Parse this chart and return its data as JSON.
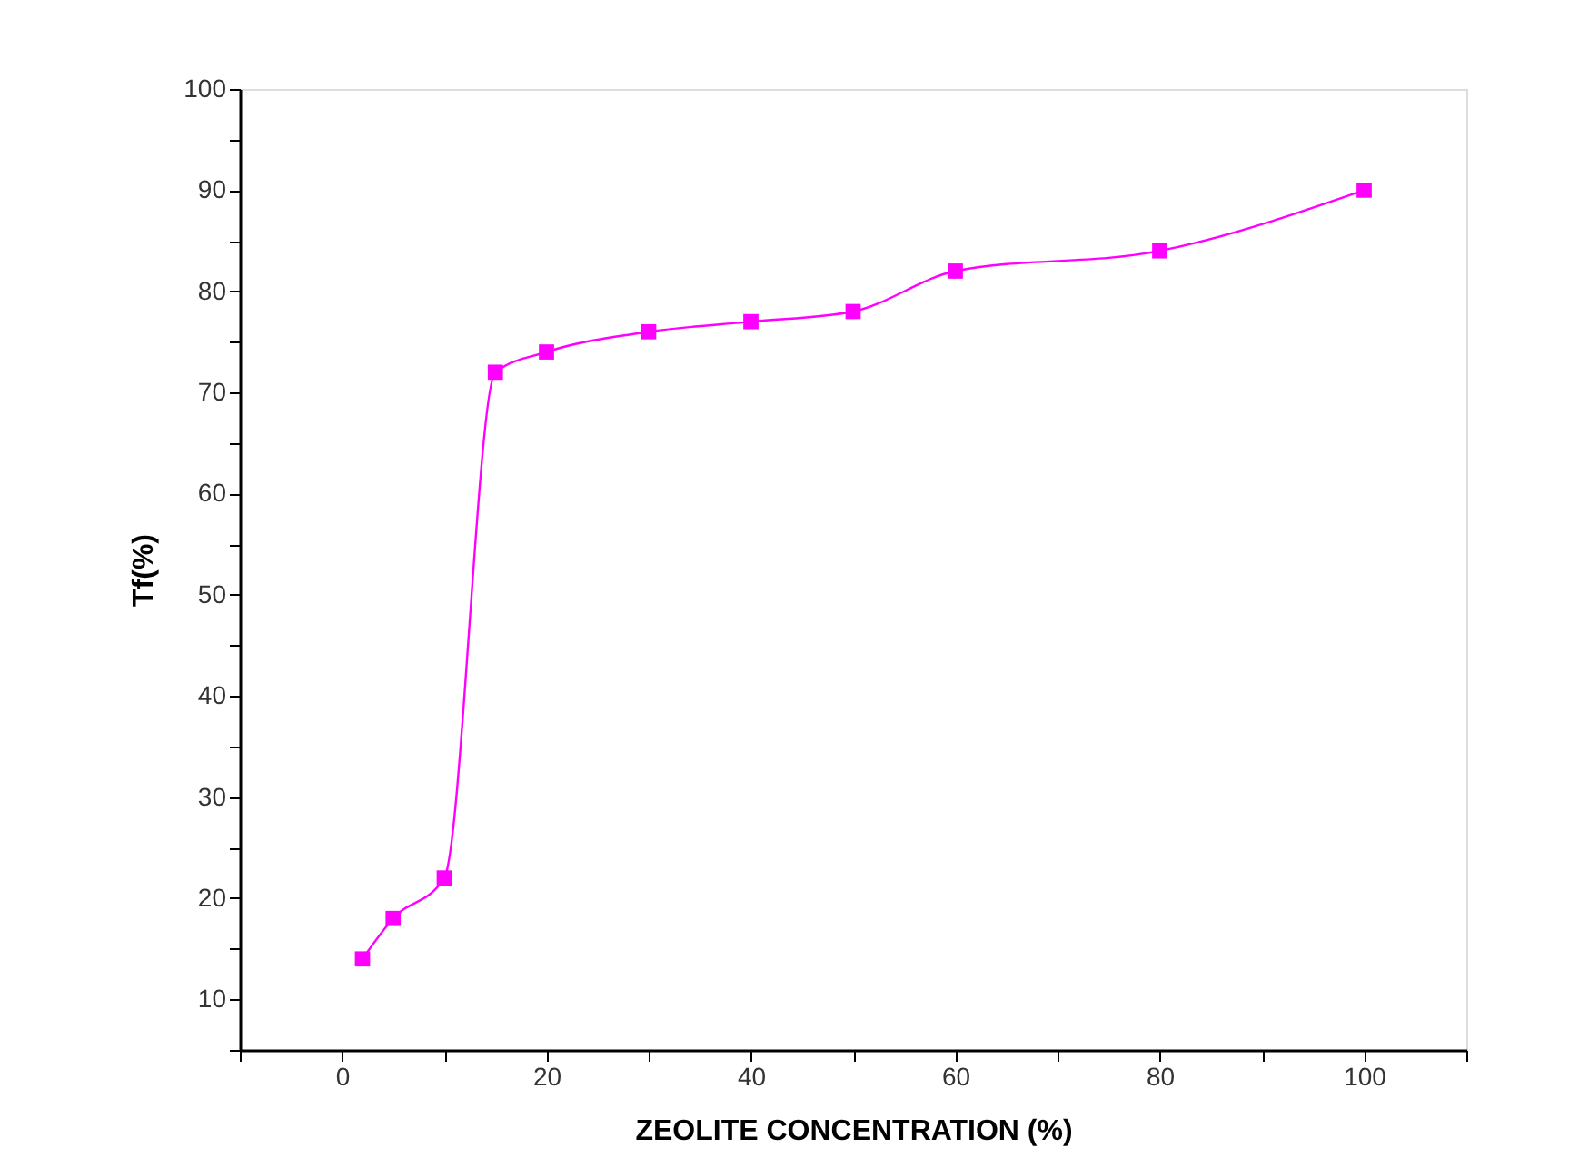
{
  "chart_data": {
    "type": "line",
    "xlabel": "ZEOLITE CONCENTRATION (%)",
    "ylabel": "Tf(%)",
    "x": [
      2,
      5,
      10,
      15,
      20,
      30,
      40,
      50,
      60,
      80,
      100
    ],
    "series": [
      {
        "color": "#ff00ff",
        "values": [
          14,
          18,
          22,
          72,
          74,
          76,
          77,
          78,
          82,
          84,
          90
        ]
      }
    ],
    "marker": "square",
    "line_style": "solid",
    "grid": false,
    "xlim": [
      -10,
      110
    ],
    "xticks": [
      {
        "value": -10,
        "label": null
      },
      0,
      {
        "value": 10,
        "label": null
      },
      20,
      {
        "value": 30,
        "label": null
      },
      40,
      {
        "value": 50,
        "label": null
      },
      60,
      {
        "value": 70,
        "label": null
      },
      80,
      {
        "value": 90,
        "label": null
      },
      100,
      {
        "value": 110,
        "label": null
      }
    ],
    "ylim": [
      5,
      100
    ],
    "yticks": [
      {
        "value": 5,
        "label": null
      },
      10,
      {
        "value": 15,
        "label": null
      },
      20,
      {
        "value": 25,
        "label": null
      },
      30,
      {
        "value": 35,
        "label": null
      },
      40,
      {
        "value": 45,
        "label": null
      },
      50,
      {
        "value": 55,
        "label": null
      },
      60,
      {
        "value": 65,
        "label": null
      },
      70,
      {
        "value": 75,
        "label": null
      },
      80,
      {
        "value": 85,
        "label": null
      },
      90,
      {
        "value": 95,
        "label": null
      },
      100
    ]
  }
}
